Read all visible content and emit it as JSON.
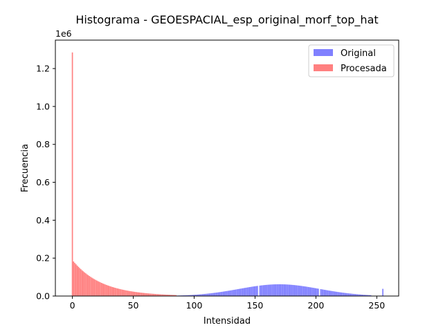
{
  "chart_data": {
    "type": "bar",
    "title": "Histograma - GEOESPACIAL_esp_original_morf_top_hat",
    "xlabel": "Intensidad",
    "ylabel": "Frecuencia",
    "y_offset_label": "1e6",
    "xlim": [
      -14,
      268
    ],
    "ylim": [
      0,
      1.35
    ],
    "x_ticks": [
      0,
      50,
      100,
      150,
      200,
      250
    ],
    "x_tick_labels": [
      "0",
      "50",
      "100",
      "150",
      "200",
      "250"
    ],
    "y_ticks": [
      0,
      0.2,
      0.4,
      0.6,
      0.8,
      1.0,
      1.2
    ],
    "y_tick_labels": [
      "0.0",
      "0.2",
      "0.4",
      "0.6",
      "0.8",
      "1.0",
      "1.2"
    ],
    "grid": false,
    "legend_position": "top-right",
    "series": [
      {
        "name": "Original",
        "color": "#8080ff",
        "bins": "0-255",
        "shape": {
          "type": "gaussian",
          "peak": 0.062,
          "center": 170,
          "sigma": 33,
          "start": 65,
          "end": 245
        },
        "special_bins": [
          {
            "x": 153,
            "value": 0.0
          },
          {
            "x": 203,
            "value": 0.0
          },
          {
            "x": 255,
            "value": 0.038
          }
        ]
      },
      {
        "name": "Procesada",
        "color": "#ff8080",
        "bins": "0-255",
        "shape": {
          "type": "exponential",
          "start_value": 0.19,
          "decay": 0.042,
          "end": 85
        },
        "special_bins": [
          {
            "x": 0,
            "value": 1.285
          }
        ]
      }
    ]
  }
}
